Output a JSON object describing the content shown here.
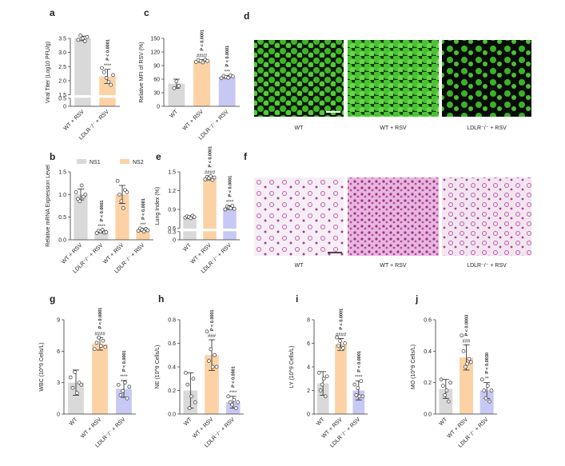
{
  "chart_data": [
    {
      "type": "bar",
      "label": "a",
      "ylabel": "Viral Titer (Log10 PFU/g)",
      "categories": [
        "WT + RSV",
        "LDLR⁻/⁻ + RSV"
      ],
      "values": [
        3.5,
        2.15
      ],
      "errors": [
        0.08,
        0.25
      ],
      "points": [
        [
          3.45,
          3.6,
          3.5,
          3.4,
          3.55
        ],
        [
          2.45,
          2.3,
          2.1,
          1.95,
          1.85,
          2.2
        ]
      ],
      "colors": [
        "#d9d9d9",
        "#fcd2a4"
      ],
      "ylim": [
        0,
        3.5
      ],
      "ybreak": [
        0.5,
        1.5
      ],
      "yticks": [
        0,
        0.5,
        1.5,
        {
          "value": 2,
          "label": "2.0"
        },
        2.5,
        {
          "value": 3,
          "label": "3.0"
        },
        3.5
      ],
      "stars": [
        null,
        "****"
      ],
      "pvalues": [
        null,
        "P < 0.0001"
      ]
    },
    {
      "type": "bar",
      "label": "b",
      "ylabel": "Relative mRNA Expression Level",
      "categories": [
        "WT + RSV",
        "LDLR⁻/⁻ + RSV",
        "WT + RSV",
        "LDLR⁻/⁻ + RSV"
      ],
      "values": [
        1.0,
        0.18,
        1.0,
        0.22
      ],
      "errors": [
        0.12,
        0.03,
        0.2,
        0.03
      ],
      "points": [
        [
          1.05,
          0.9,
          0.85,
          1.2,
          0.95,
          1.0
        ],
        [
          0.15,
          0.2,
          0.18,
          0.22,
          0.16,
          0.17
        ],
        [
          1.3,
          1.0,
          0.85,
          0.7,
          1.1,
          1.05
        ],
        [
          0.2,
          0.25,
          0.22,
          0.18,
          0.24,
          0.21
        ]
      ],
      "colors": [
        "#d9d9d9",
        "#d9d9d9",
        "#fcd2a4",
        "#fcd2a4"
      ],
      "ylim": [
        0,
        1.5
      ],
      "yticks": [
        {
          "value": 0,
          "label": "0.0"
        },
        0.5,
        {
          "value": 1,
          "label": "1.0"
        },
        1.5
      ],
      "legend": [
        {
          "name": "NS1",
          "color": "#d9d9d9"
        },
        {
          "name": "NS2",
          "color": "#fcd2a4"
        }
      ],
      "stars": [
        null,
        "****",
        null,
        "***"
      ],
      "pvalues": [
        null,
        "P < 0.0001",
        null,
        "P < 0.0001"
      ]
    },
    {
      "type": "bar",
      "label": "c",
      "ylabel": "Relative MFI of RSV (%)",
      "categories": [
        "WT",
        "WT + RSV",
        "LDLR⁻/⁻ + RSV"
      ],
      "values": [
        50,
        100,
        65
      ],
      "errors": [
        10,
        3,
        3
      ],
      "points": [
        [
          40,
          55,
          45
        ],
        [
          98,
          102,
          100,
          97,
          103,
          100
        ],
        [
          62,
          67,
          65,
          63,
          68,
          66
        ]
      ],
      "colors": [
        "#d9d9d9",
        "#fcd2a4",
        "#c8c8f4"
      ],
      "ylim": [
        0,
        150
      ],
      "yticks": [
        0,
        30,
        60,
        90,
        120,
        150
      ],
      "stars": [
        null,
        "####",
        "***"
      ],
      "pvalues": [
        null,
        "P < 0.0001",
        "P < 0.0001"
      ]
    },
    {
      "type": "bar",
      "label": "e",
      "ylabel": "Lung Index (%)",
      "categories": [
        "WT",
        "WT + RSV",
        "LDLR⁻/⁻ + RSV"
      ],
      "values": [
        0.78,
        1.4,
        0.93
      ],
      "errors": [
        0.02,
        0.03,
        0.03
      ],
      "points": [
        [
          0.77,
          0.79,
          0.78,
          0.76,
          0.8,
          0.78
        ],
        [
          1.38,
          1.42,
          1.4,
          1.43,
          1.37,
          1.41
        ],
        [
          0.9,
          0.95,
          0.93,
          0.92,
          0.96,
          0.91
        ]
      ],
      "colors": [
        "#d9d9d9",
        "#fcd2a4",
        "#c8c8f4"
      ],
      "ylim": [
        0,
        1.5
      ],
      "ybreak": [
        0.3,
        0.6
      ],
      "yticks": [
        0,
        0.3,
        0.6,
        0.9,
        1.2,
        1.5
      ],
      "stars": [
        null,
        "####",
        "****"
      ],
      "pvalues": [
        null,
        "P < 0.0001",
        "P < 0.0001"
      ]
    },
    {
      "type": "bar",
      "label": "g",
      "ylabel": "WBC (10^9 Cells/L)",
      "categories": [
        "WT",
        "WT + RSV",
        "LDLR⁻/⁻ + RSV"
      ],
      "values": [
        3.0,
        6.7,
        2.4
      ],
      "errors": [
        1.2,
        0.6,
        0.8
      ],
      "points": [
        [
          3.5,
          2.5,
          4.0,
          2.0,
          3.0,
          2.8
        ],
        [
          6.2,
          6.8,
          7.3,
          6.5,
          7.0,
          6.4
        ],
        [
          2.8,
          1.8,
          2.2,
          3.0,
          1.5,
          2.6
        ]
      ],
      "colors": [
        "#d9d9d9",
        "#fcd2a4",
        "#c8c8f4"
      ],
      "ylim": [
        0,
        9
      ],
      "yticks": [
        0,
        3,
        6,
        9
      ],
      "stars": [
        null,
        "####",
        "****"
      ],
      "pvalues": [
        null,
        "P < 0.0001",
        "P < 0.0001"
      ]
    },
    {
      "type": "bar",
      "label": "h",
      "ylabel": "NE (10^9 Cells/L)",
      "categories": [
        "WT",
        "WT + RSV",
        "LDLR⁻/⁻ + RSV"
      ],
      "values": [
        0.2,
        0.5,
        0.1
      ],
      "errors": [
        0.15,
        0.13,
        0.05
      ],
      "points": [
        [
          0.35,
          0.25,
          0.05,
          0.15,
          0.3,
          0.1
        ],
        [
          0.7,
          0.45,
          0.55,
          0.4,
          0.5,
          0.4
        ],
        [
          0.15,
          0.1,
          0.08,
          0.12,
          0.05,
          0.1
        ]
      ],
      "colors": [
        "#d9d9d9",
        "#fcd2a4",
        "#c8c8f4"
      ],
      "ylim": [
        0,
        0.8
      ],
      "yticks": [
        {
          "value": 0,
          "label": "0.0"
        },
        0.2,
        0.4,
        0.6,
        0.8
      ],
      "stars": [
        null,
        "###",
        "****"
      ],
      "pvalues": [
        null,
        "P < 0.0001",
        "P < 0.0001"
      ]
    },
    {
      "type": "bar",
      "label": "i",
      "ylabel": "LY (10^9 Cells/L)",
      "categories": [
        "WT",
        "WT + RSV",
        "LDLR⁻/⁻ + RSV"
      ],
      "values": [
        2.6,
        5.9,
        2.0
      ],
      "errors": [
        1.0,
        0.5,
        0.8
      ],
      "points": [
        [
          3.5,
          2.0,
          2.5,
          3.0,
          1.5,
          3.2
        ],
        [
          6.5,
          5.8,
          6.2,
          5.5,
          5.6,
          6.0
        ],
        [
          2.5,
          1.6,
          2.2,
          1.5,
          2.8,
          1.5
        ]
      ],
      "colors": [
        "#d9d9d9",
        "#fcd2a4",
        "#c8c8f4"
      ],
      "ylim": [
        0,
        8
      ],
      "yticks": [
        0,
        2,
        4,
        6,
        8
      ],
      "stars": [
        null,
        "####",
        "****"
      ],
      "pvalues": [
        null,
        "P < 0.0001",
        "P < 0.0001"
      ]
    },
    {
      "type": "bar",
      "label": "j",
      "ylabel": "MO (10^9 Cells/L)",
      "categories": [
        "WT",
        "WT + RSV",
        "LDLR⁻/⁻ + RSV"
      ],
      "values": [
        0.16,
        0.36,
        0.15
      ],
      "errors": [
        0.06,
        0.08,
        0.05
      ],
      "points": [
        [
          0.22,
          0.18,
          0.12,
          0.15,
          0.08,
          0.2
        ],
        [
          0.5,
          0.4,
          0.3,
          0.32,
          0.35,
          0.33
        ],
        [
          0.22,
          0.15,
          0.1,
          0.18,
          0.08,
          0.15
        ]
      ],
      "colors": [
        "#d9d9d9",
        "#fcd2a4",
        "#c8c8f4"
      ],
      "ylim": [
        0,
        0.6
      ],
      "yticks": [
        {
          "value": 0,
          "label": "0.0"
        },
        0.2,
        0.4,
        0.6
      ],
      "stars": [
        null,
        "###",
        "**"
      ],
      "pvalues": [
        null,
        "P < 0.0003",
        "P < 0.0030"
      ]
    }
  ],
  "micrographs": [
    {
      "label": "d",
      "captions": [
        "WT",
        "WT + RSV",
        "LDLR⁻/⁻ + RSV"
      ]
    },
    {
      "label": "f",
      "captions": [
        "WT",
        "WT + RSV",
        "LDLR⁻/⁻ + RSV"
      ]
    }
  ]
}
